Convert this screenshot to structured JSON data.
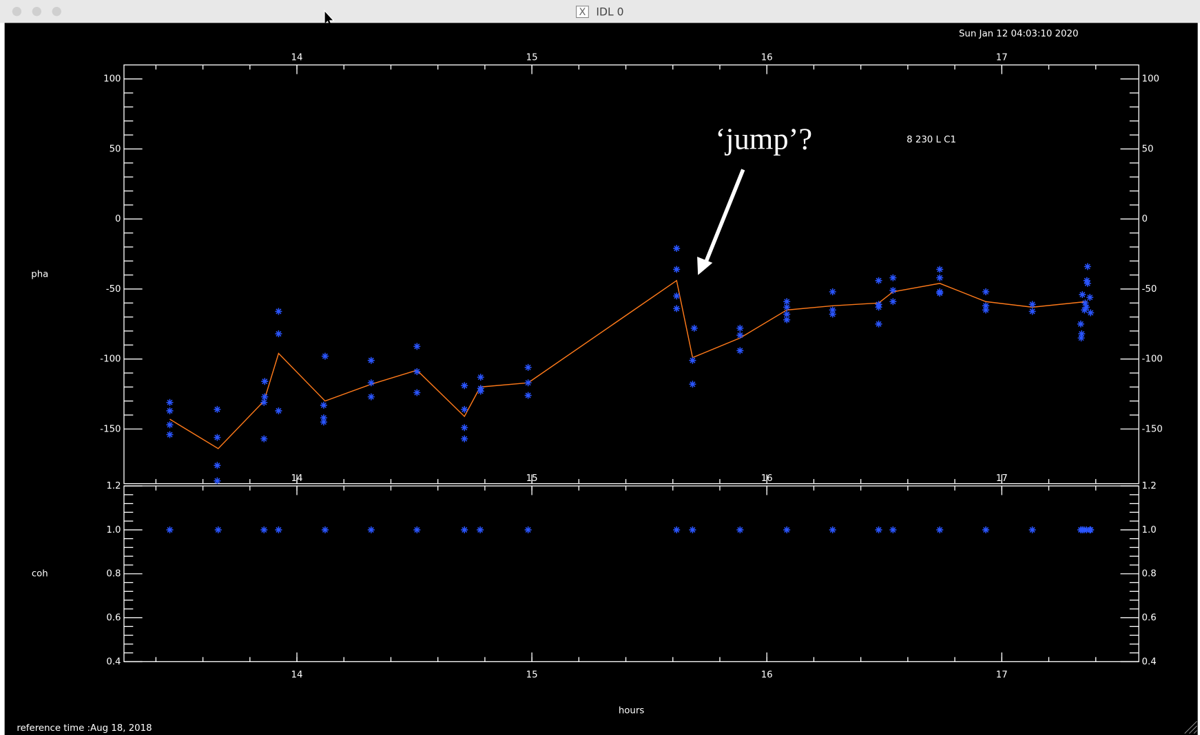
{
  "window_title": "IDL 0",
  "timestamp": "Sun Jan 12 04:03:10 2020",
  "annotation": "‘jump’?",
  "plot_label": "8 230 L C1",
  "reference_time": "reference time :Aug 18, 2018",
  "chart_data": [
    {
      "type": "line",
      "ylabel": "pha",
      "xlim": [
        13.264,
        17.583
      ],
      "ylim": [
        -189,
        110
      ],
      "xticks": [
        14,
        15,
        16,
        17
      ],
      "yticks": [
        -150,
        -100,
        -50,
        0,
        50,
        100
      ],
      "series": [
        {
          "mode": "line",
          "color": "#ff7a1a",
          "x": [
            13.459,
            13.665,
            13.86,
            13.922,
            14.12,
            14.316,
            14.511,
            14.713,
            14.78,
            14.984,
            15.616,
            15.684,
            15.886,
            16.085,
            16.28,
            16.476,
            16.537,
            16.736,
            16.932,
            17.13,
            17.36
          ],
          "values": [
            -143,
            -164,
            -130,
            -96,
            -130,
            -118,
            -108,
            -141,
            -120,
            -117,
            -44,
            -99,
            -85,
            -65,
            -62,
            -60,
            -52,
            -46,
            -59,
            -63,
            -59
          ]
        },
        {
          "mode": "points",
          "color": "#2a55ff",
          "x": [
            13.459,
            13.459,
            13.459,
            13.459,
            13.661,
            13.661,
            13.661,
            13.661,
            13.86,
            13.86,
            13.863,
            13.863,
            13.922,
            13.922,
            13.922,
            14.12,
            14.114,
            14.114,
            14.114,
            14.316,
            14.316,
            14.316,
            14.511,
            14.511,
            14.511,
            14.713,
            14.713,
            14.713,
            14.713,
            14.782,
            14.782,
            14.782,
            14.984,
            14.984,
            14.984,
            15.616,
            15.616,
            15.616,
            15.616,
            15.691,
            15.684,
            15.684,
            15.886,
            15.886,
            15.886,
            16.085,
            16.085,
            16.085,
            16.085,
            16.28,
            16.28,
            16.28,
            16.476,
            16.476,
            16.476,
            16.476,
            16.537,
            16.537,
            16.537,
            16.736,
            16.736,
            16.736,
            16.736,
            16.932,
            16.932,
            16.932,
            17.13,
            17.13,
            17.365,
            17.362,
            17.365,
            17.343,
            17.375,
            17.355,
            17.36,
            17.352,
            17.378,
            17.336,
            17.34,
            17.338
          ],
          "values": [
            -131,
            -137,
            -147,
            -154,
            -136,
            -156,
            -176,
            -187,
            -131,
            -157,
            -116,
            -127,
            -66,
            -82,
            -137,
            -98,
            -133,
            -142,
            -145,
            -101,
            -117,
            -127,
            -91,
            -109,
            -124,
            -119,
            -136,
            -149,
            -157,
            -113,
            -121,
            -123,
            -106,
            -117,
            -126,
            -21,
            -36,
            -55,
            -64,
            -78,
            -101,
            -118,
            -78,
            -83,
            -94,
            -59,
            -63,
            -68,
            -72,
            -52,
            -65,
            -68,
            -44,
            -61,
            -63,
            -75,
            -42,
            -51,
            -59,
            -36,
            -42,
            -52,
            -53,
            -52,
            -62,
            -65,
            -61,
            -66,
            -34,
            -44,
            -46,
            -54,
            -56,
            -60,
            -63,
            -65,
            -67,
            -75,
            -82,
            -85
          ]
        }
      ]
    },
    {
      "type": "scatter",
      "ylabel": "coh",
      "xlabel": "hours",
      "xlim": [
        13.264,
        17.583
      ],
      "ylim": [
        0.4,
        1.2
      ],
      "xticks": [
        14,
        15,
        16,
        17
      ],
      "yticks": [
        0.4,
        0.6,
        0.8,
        {
          "value": 1,
          "label": "1.0"
        },
        1.2
      ],
      "series": [
        {
          "mode": "points",
          "color": "#2a55ff",
          "x": [
            13.459,
            13.665,
            13.86,
            13.922,
            14.12,
            14.316,
            14.511,
            14.713,
            14.78,
            14.984,
            15.616,
            15.684,
            15.886,
            16.085,
            16.28,
            16.476,
            16.537,
            16.736,
            16.932,
            17.13,
            17.336,
            17.343,
            17.35,
            17.36,
            17.375,
            17.378
          ],
          "values": [
            1,
            1,
            1,
            1,
            1,
            1,
            1,
            1,
            1,
            1,
            1,
            1,
            1,
            1,
            1,
            1,
            1,
            1,
            1,
            1,
            1,
            1,
            1,
            1,
            1,
            1
          ]
        }
      ]
    }
  ]
}
